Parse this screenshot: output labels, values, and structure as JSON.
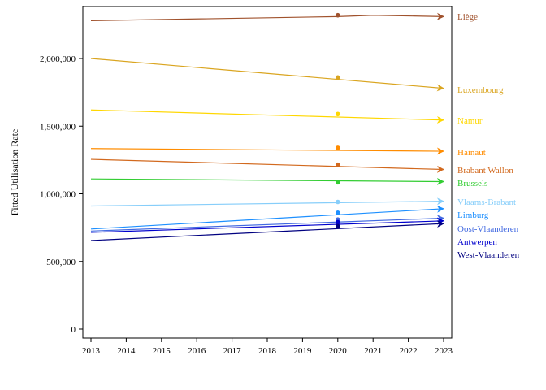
{
  "chart_data": {
    "type": "line",
    "title": "",
    "xlabel": "",
    "ylabel": "Fitted Utilisation Rate",
    "xlim": [
      2013,
      2023
    ],
    "ylim": [
      0,
      2400000
    ],
    "x_ticks": [
      "2013",
      "2014",
      "2015",
      "2016",
      "2017",
      "2018",
      "2019",
      "2020",
      "2021",
      "2022",
      "2023"
    ],
    "y_ticks": [
      {
        "value": 0,
        "label": "0"
      },
      {
        "value": 500000,
        "label": "500,000"
      },
      {
        "value": 1000000,
        "label": "1,000,000"
      },
      {
        "value": 1500000,
        "label": "1,500,000"
      },
      {
        "value": 2000000,
        "label": "2,000,000"
      }
    ],
    "grid": false,
    "legend": "direct labels at right end of lines",
    "point_year": 2020,
    "series": [
      {
        "name": "Liège",
        "color": "#a0522d",
        "x": [
          2013,
          2020,
          2021,
          2023
        ],
        "values": [
          2280000,
          2310000,
          2320000,
          2310000
        ],
        "point": 2320000
      },
      {
        "name": "Luxembourg",
        "color": "#daa520",
        "x": [
          2013,
          2023
        ],
        "values": [
          2000000,
          1780000
        ],
        "point": 1860000
      },
      {
        "name": "Namur",
        "color": "#ffd700",
        "x": [
          2013,
          2023
        ],
        "values": [
          1620000,
          1545000
        ],
        "point": 1590000
      },
      {
        "name": "Hainaut",
        "color": "#ff8c00",
        "x": [
          2013,
          2023
        ],
        "values": [
          1335000,
          1315000
        ],
        "point": 1340000
      },
      {
        "name": "Brabant Wallon",
        "color": "#d2691e",
        "x": [
          2013,
          2023
        ],
        "values": [
          1255000,
          1180000
        ],
        "point": 1215000
      },
      {
        "name": "Brussels",
        "color": "#32cd32",
        "x": [
          2013,
          2023
        ],
        "values": [
          1110000,
          1090000
        ],
        "point": 1085000
      },
      {
        "name": "Vlaams-Brabant",
        "color": "#87cefa",
        "x": [
          2013,
          2023
        ],
        "values": [
          910000,
          945000
        ],
        "point": 940000
      },
      {
        "name": "Limburg",
        "color": "#1e90ff",
        "x": [
          2013,
          2023
        ],
        "values": [
          740000,
          890000
        ],
        "point": 860000
      },
      {
        "name": "Oost-Vlaanderen",
        "color": "#4169e1",
        "x": [
          2013,
          2023
        ],
        "values": [
          725000,
          820000
        ],
        "point": 810000
      },
      {
        "name": "Antwerpen",
        "color": "#0000cd",
        "x": [
          2013,
          2023
        ],
        "values": [
          715000,
          800000
        ],
        "point": 790000
      },
      {
        "name": "West-Vlaanderen",
        "color": "#000080",
        "x": [
          2013,
          2023
        ],
        "values": [
          655000,
          780000
        ],
        "point": 760000
      }
    ]
  }
}
